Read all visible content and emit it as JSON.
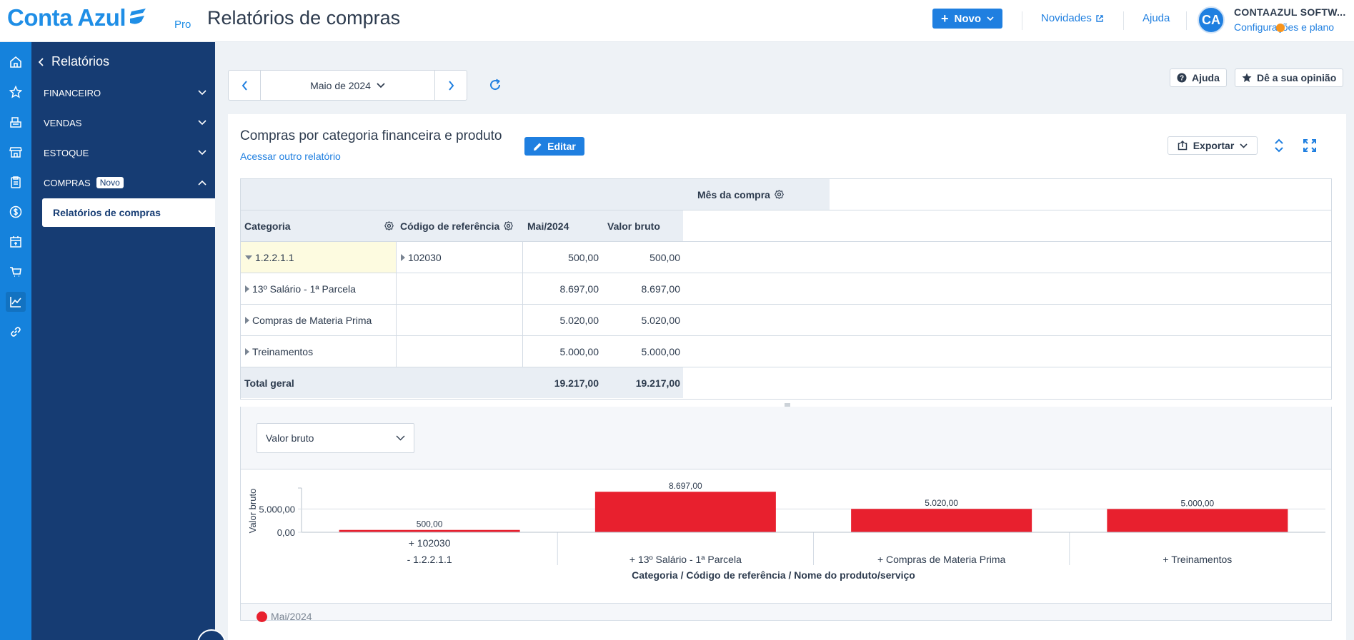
{
  "app": {
    "logo_text": "Conta Azul",
    "plan": "Pro",
    "page_title": "Relatórios de compras",
    "new_button": "Novo",
    "news_link": "Novidades",
    "help_link": "Ajuda",
    "avatar_initials": "CA",
    "company_name": "CONTAAZUL SOFTW...",
    "config_link": "Configurações e plano",
    "accent_color": "#1f7fe0",
    "sidebar_color": "#163c73"
  },
  "rail": {
    "icons": [
      "home-icon",
      "star-icon",
      "cash-register-icon",
      "store-icon",
      "clipboard-icon",
      "dollar-icon",
      "calendar-icon",
      "cart-icon",
      "chart-icon",
      "link-icon"
    ]
  },
  "sidebar": {
    "title": "Relatórios",
    "items": [
      {
        "label": "FINANCEIRO",
        "badge": ""
      },
      {
        "label": "VENDAS",
        "badge": ""
      },
      {
        "label": "ESTOQUE",
        "badge": ""
      },
      {
        "label": "COMPRAS",
        "badge": "Novo"
      }
    ],
    "active_item": "Relatórios de compras"
  },
  "toolbar": {
    "period": "Maio de 2024",
    "help_button": "Ajuda",
    "feedback_button": "Dê a sua opinião"
  },
  "report": {
    "title": "Compras por categoria financeira e produto",
    "other_link": "Acessar outro relatório",
    "edit_button": "Editar",
    "export_button": "Exportar",
    "pivot": {
      "column_group": "Mês da compra",
      "headers": [
        "Categoria",
        "Código de referência",
        "Mai/2024",
        "Valor bruto"
      ],
      "rows": [
        {
          "categoria": "1.2.2.1.1",
          "codigo": "102030",
          "mes": "500,00",
          "valor": "500,00"
        },
        {
          "categoria": "13º Salário - 1ª Parcela",
          "codigo": "",
          "mes": "8.697,00",
          "valor": "8.697,00"
        },
        {
          "categoria": "Compras de Materia Prima",
          "codigo": "",
          "mes": "5.020,00",
          "valor": "5.020,00"
        },
        {
          "categoria": "Treinamentos",
          "codigo": "",
          "mes": "5.000,00",
          "valor": "5.000,00"
        }
      ],
      "total_label": "Total geral",
      "total_mes": "19.217,00",
      "total_valor": "19.217,00"
    },
    "measure_select": "Valor bruto"
  },
  "chart_data": {
    "type": "bar",
    "categories": [
      "+ 102030 - 1.2.2.1.1",
      "+ 13º Salário - 1ª Parcela",
      "+ Compras de Materia Prima",
      "+ Treinamentos"
    ],
    "category_lines": [
      [
        "+ 102030",
        "- 1.2.2.1.1"
      ],
      [
        "+ 13º Salário - 1ª Parcela"
      ],
      [
        "+ Compras de Materia Prima"
      ],
      [
        "+ Treinamentos"
      ]
    ],
    "values": [
      500,
      8697,
      5020,
      5000
    ],
    "value_labels": [
      "500,00",
      "8.697,00",
      "5.020,00",
      "5.000,00"
    ],
    "series": [
      {
        "name": "Mai/2024",
        "values": [
          500,
          8697,
          5020,
          5000
        ]
      }
    ],
    "ylabel": "Valor bruto",
    "xlabel": "Categoria / Código de referência / Nome do produto/serviço",
    "yticks": [
      {
        "value": 0,
        "label": "0,00"
      },
      {
        "value": 5000,
        "label": "5.000,00"
      }
    ],
    "ylim": [
      0,
      9500
    ],
    "bar_color": "#e8202e",
    "grid": true,
    "legend": "bottom-left"
  }
}
